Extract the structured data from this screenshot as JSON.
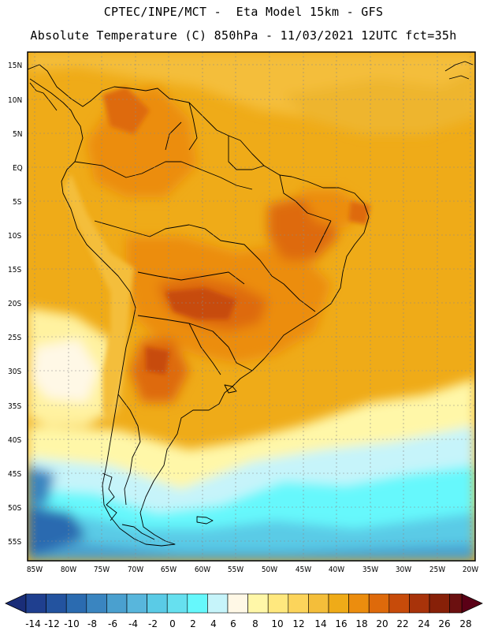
{
  "header": {
    "line1": "CPTEC/INPE/MCT -  Eta Model 15km - GFS",
    "line2": "Absolute Temperature (C) 850hPa - 11/03/2021 12UTC fct=35h"
  },
  "map": {
    "lat_labels": [
      "15N",
      "10N",
      "5N",
      "EQ",
      "5S",
      "10S",
      "15S",
      "20S",
      "25S",
      "30S",
      "35S",
      "40S",
      "45S",
      "50S",
      "55S"
    ],
    "lon_labels": [
      "85W",
      "80W",
      "75W",
      "70W",
      "65W",
      "60W",
      "55W",
      "50W",
      "45W",
      "40W",
      "35W",
      "30W",
      "25W",
      "20W"
    ]
  },
  "colorbar": {
    "labels": [
      "-14",
      "-12",
      "-10",
      "-8",
      "-6",
      "-4",
      "-2",
      "0",
      "2",
      "4",
      "6",
      "8",
      "10",
      "12",
      "14",
      "16",
      "18",
      "20",
      "22",
      "24",
      "26",
      "28"
    ],
    "colors": [
      "#1f3f8f",
      "#23539f",
      "#2b6bb0",
      "#3a85c0",
      "#4aa0cf",
      "#58b6dc",
      "#5acbe6",
      "#66e0ef",
      "#66f8fc",
      "#c6f4fa",
      "#fff8e6",
      "#fff7a8",
      "#ffe87e",
      "#fcd45b",
      "#f4be3a",
      "#efab18",
      "#ec8d0e",
      "#de6a0b",
      "#c74b0a",
      "#a8330a",
      "#872008",
      "#6b1010"
    ],
    "min_arrow_color": "#1a2d78",
    "max_arrow_color": "#5a0016"
  }
}
